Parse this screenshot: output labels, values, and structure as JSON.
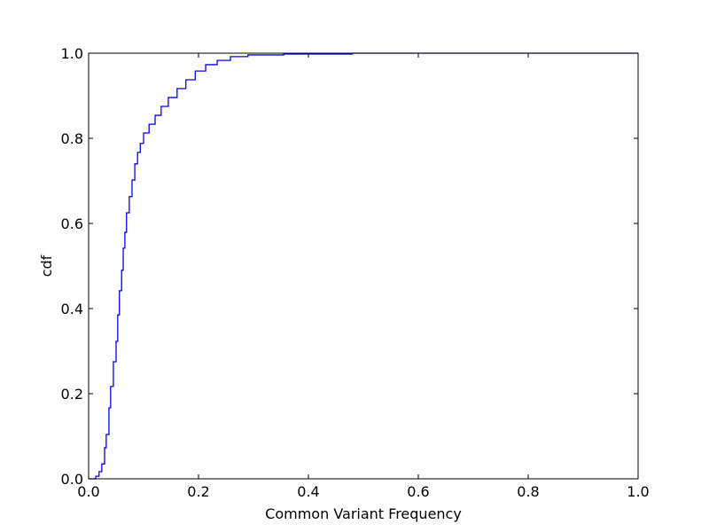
{
  "chart_data": {
    "type": "line",
    "title": "",
    "xlabel": "Common Variant Frequency",
    "ylabel": "cdf",
    "xlim": [
      0,
      1
    ],
    "ylim": [
      0,
      1
    ],
    "grid": false,
    "line_color": "#0000ff",
    "step": true,
    "xticks": [
      "0.0",
      "0.2",
      "0.4",
      "0.6",
      "0.8",
      "1.0"
    ],
    "yticks": [
      "0.0",
      "0.2",
      "0.4",
      "0.6",
      "0.8",
      "1.0"
    ],
    "series": [
      {
        "x": [
          0,
          0.013,
          0.019,
          0.024,
          0.029,
          0.032,
          0.037,
          0.04,
          0.045,
          0.05,
          0.053,
          0.056,
          0.06,
          0.063,
          0.066,
          0.069,
          0.074,
          0.079,
          0.084,
          0.089,
          0.094,
          0.1,
          0.11,
          0.121,
          0.132,
          0.145,
          0.161,
          0.177,
          0.194,
          0.213,
          0.234,
          0.258,
          0.29,
          0.355,
          0.48,
          1.0
        ],
        "y": [
          0,
          0.006,
          0.017,
          0.035,
          0.073,
          0.104,
          0.167,
          0.217,
          0.275,
          0.323,
          0.385,
          0.442,
          0.49,
          0.542,
          0.579,
          0.625,
          0.663,
          0.702,
          0.74,
          0.767,
          0.788,
          0.8125,
          0.833,
          0.854,
          0.875,
          0.896,
          0.917,
          0.9375,
          0.958,
          0.973,
          0.983,
          0.992,
          0.996,
          0.998,
          1.0,
          1.0
        ]
      }
    ]
  }
}
